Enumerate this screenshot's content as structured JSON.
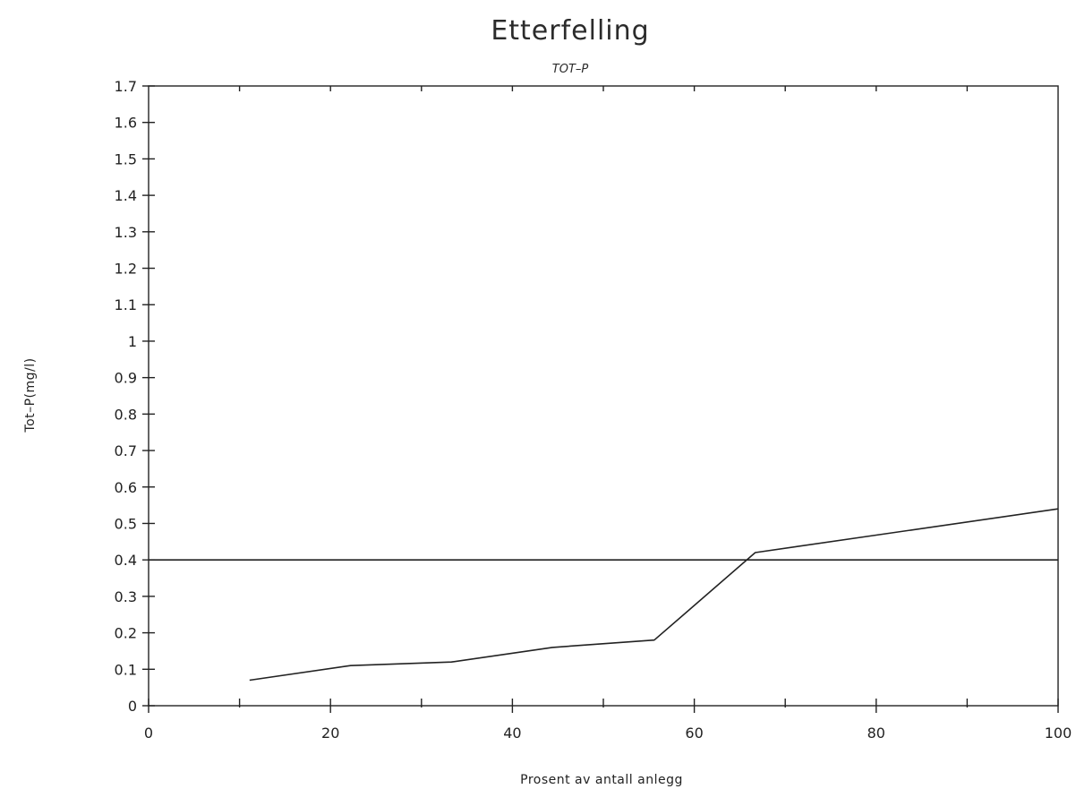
{
  "chart_data": {
    "type": "line",
    "title": "Etterfelling",
    "subtitle": "TOT–P",
    "xlabel": "Prosent av antall anlegg",
    "ylabel": "Tot–P(mg/l)",
    "xlim": [
      0,
      100
    ],
    "ylim": [
      0,
      1.7
    ],
    "x_ticks": [
      0,
      20,
      40,
      60,
      80,
      100
    ],
    "x_tick_labels": [
      "0",
      "20",
      "40",
      "60",
      "80",
      "100"
    ],
    "x_minor_ticks": [
      10,
      30,
      50,
      70,
      90
    ],
    "y_ticks": [
      0,
      0.1,
      0.2,
      0.3,
      0.4,
      0.5,
      0.6,
      0.7,
      0.8,
      0.9,
      1,
      1.1,
      1.2,
      1.3,
      1.4,
      1.5,
      1.6,
      1.7
    ],
    "y_tick_labels": [
      "0",
      "0.1",
      "0.2",
      "0.3",
      "0.4",
      "0.5",
      "0.6",
      "0.7",
      "0.8",
      "0.9",
      "1",
      "1.1",
      "1.2",
      "1.3",
      "1.4",
      "1.5",
      "1.6",
      "1.7"
    ],
    "grid": false,
    "series": [
      {
        "x": [
          11.1,
          22.2,
          33.3,
          44.4,
          55.6,
          66.7,
          100
        ],
        "y": [
          0.07,
          0.11,
          0.12,
          0.16,
          0.18,
          0.42,
          0.54
        ]
      }
    ],
    "reference_lines": [
      {
        "axis": "y",
        "value": 0.4
      }
    ]
  }
}
